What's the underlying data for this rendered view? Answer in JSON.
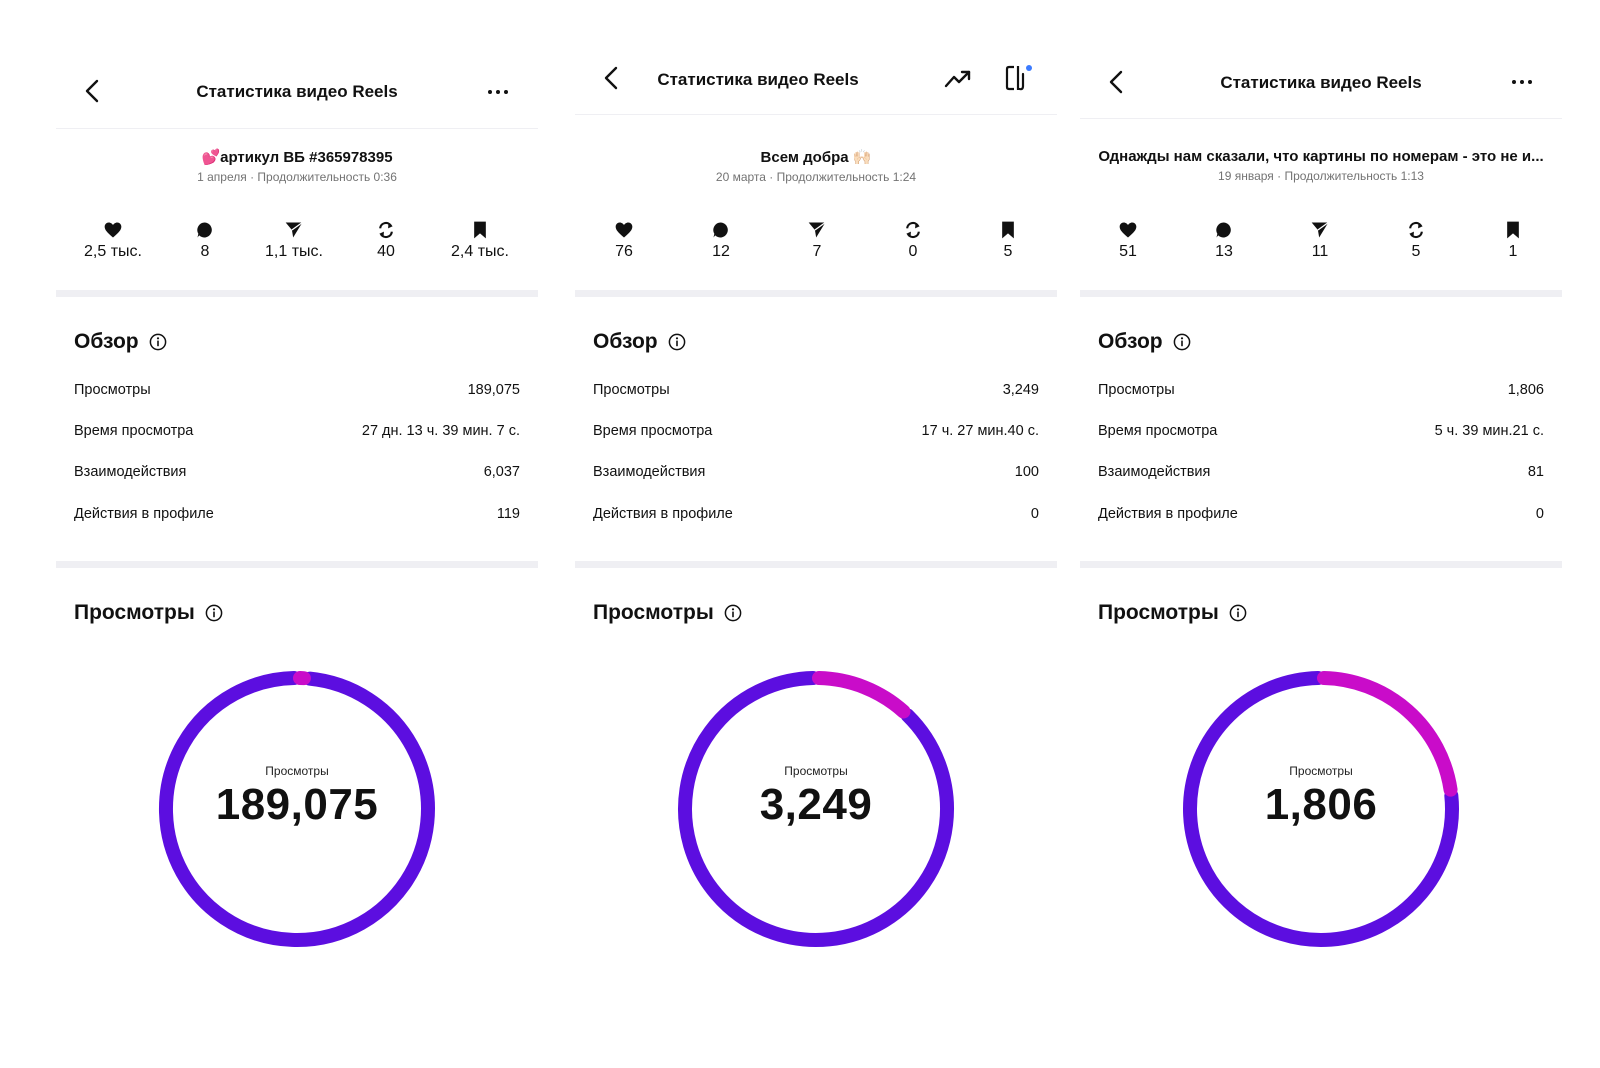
{
  "colors": {
    "primary": "#5c0ee0",
    "accent": "#c90cc9",
    "badge": "#3b7bff"
  },
  "panels": [
    {
      "title": "Статистика видео Reels",
      "caption_emoji": "💕",
      "caption": "артикул ВБ #365978395",
      "date": "1 апреля",
      "duration": "Продолжительность 0:36",
      "stats": {
        "likes": "2,5 тыс.",
        "comments": "8",
        "shares": "1,1 тыс.",
        "reposts": "40",
        "saves": "2,4 тыс."
      },
      "overview_title": "Обзор",
      "overview": [
        {
          "label": "Просмотры",
          "value": "189,075"
        },
        {
          "label": "Время просмотра",
          "value": "27 дн. 13 ч. 39 мин. 7 с."
        },
        {
          "label": "Взаимодействия",
          "value": "6,037"
        },
        {
          "label": "Действия в профиле",
          "value": "119"
        }
      ],
      "views_title": "Просмотры",
      "donut_label": "Просмотры",
      "donut_value": "189,075",
      "accent_share": 0.012
    },
    {
      "title": "Статистика видео Reels",
      "caption": "Всем добра",
      "caption_emoji": "🙌🏻",
      "date": "20 марта",
      "duration": "Продолжительность 1:24",
      "stats": {
        "likes": "76",
        "comments": "12",
        "shares": "7",
        "reposts": "0",
        "saves": "5"
      },
      "overview_title": "Обзор",
      "overview": [
        {
          "label": "Просмотры",
          "value": "3,249"
        },
        {
          "label": "Время просмотра",
          "value": "17 ч. 27 мин.40 с."
        },
        {
          "label": "Взаимодействия",
          "value": "100"
        },
        {
          "label": "Действия в профиле",
          "value": "0"
        }
      ],
      "views_title": "Просмотры",
      "donut_label": "Просмотры",
      "donut_value": "3,249",
      "accent_share": 0.12
    },
    {
      "title": "Статистика видео Reels",
      "caption": "Однажды нам сказали, что картины по номерам - это не и...",
      "date": "19 января",
      "duration": "Продолжительность 1:13",
      "stats": {
        "likes": "51",
        "comments": "13",
        "shares": "11",
        "reposts": "5",
        "saves": "1"
      },
      "overview_title": "Обзор",
      "overview": [
        {
          "label": "Просмотры",
          "value": "1,806"
        },
        {
          "label": "Время просмотра",
          "value": "5 ч. 39 мин.21 с."
        },
        {
          "label": "Взаимодействия",
          "value": "81"
        },
        {
          "label": "Действия в профиле",
          "value": "0"
        }
      ],
      "views_title": "Просмотры",
      "donut_label": "Просмотры",
      "donut_value": "1,806",
      "accent_share": 0.23
    }
  ]
}
